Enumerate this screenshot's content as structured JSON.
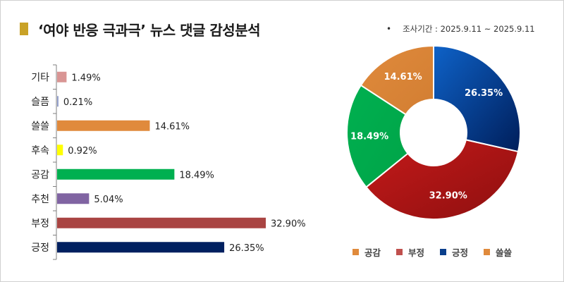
{
  "title": "‘여야 반응 극과극’ 뉴스 댓글 감성분석",
  "title_accent": "#C9A227",
  "period": "조사기간 : 2025.9.11 ~ 2025.9.11",
  "chart_data": [
    {
      "type": "bar",
      "orientation": "horizontal",
      "categories": [
        "기타",
        "슬픔",
        "쓸쓸",
        "후속",
        "공감",
        "추천",
        "부정",
        "긍정"
      ],
      "values": [
        1.49,
        0.21,
        14.61,
        0.92,
        18.49,
        5.04,
        32.9,
        26.35
      ],
      "labels": [
        "1.49%",
        "0.21%",
        "14.61%",
        "0.92%",
        "18.49%",
        "5.04%",
        "32.90%",
        "26.35%"
      ],
      "colors": [
        "#D99594",
        "#8E9BC9",
        "#E08A3C",
        "#FFFF00",
        "#00B050",
        "#8064A2",
        "#A94442",
        "#002060"
      ],
      "unit": "%"
    },
    {
      "type": "pie",
      "donut": true,
      "categories": [
        "긍정",
        "부정",
        "공감",
        "쓸쓸"
      ],
      "values": [
        26.35,
        32.9,
        18.49,
        14.61
      ],
      "labels": [
        "26.35%",
        "32.90%",
        "18.49%",
        "14.61%"
      ],
      "colors": [
        "#0A3F8C",
        "#B71C1C",
        "#00B050",
        "#E08A3C"
      ],
      "legend": {
        "placement": "bottom",
        "entries": [
          {
            "label": "공감",
            "color": "#E08A3C"
          },
          {
            "label": "부정",
            "color": "#C0504D"
          },
          {
            "label": "긍정",
            "color": "#0A3F8C"
          },
          {
            "label": "쓸쓸",
            "color": "#E08A3C"
          }
        ]
      }
    }
  ]
}
